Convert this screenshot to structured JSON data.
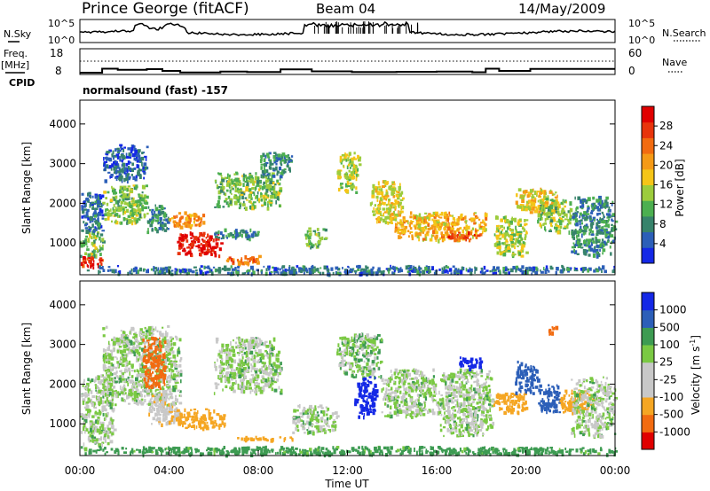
{
  "header": {
    "site": "Prince George (fitACF)",
    "beam": "Beam 04",
    "date": "14/May/2009"
  },
  "nsky_panel": {
    "left_label": "N.Sky",
    "left_ticks": [
      "10^5",
      "10^0"
    ],
    "right_ticks": [
      "10^5",
      "10^0"
    ],
    "right_label": "N.Search"
  },
  "freq_panel": {
    "left_label_line1": "Freq.",
    "left_label_line2": "[MHz]",
    "left_ticks": [
      "18",
      "8"
    ],
    "right_ticks": [
      "60",
      "0"
    ],
    "right_label": "Nave",
    "cpid_label": "CPID",
    "cpid_text": "normalsound (fast) -157",
    "freq_steps_mhz": [
      [
        0.0,
        8.8
      ],
      [
        1.0,
        10.6
      ],
      [
        1.7,
        10.1
      ],
      [
        3.0,
        10.4
      ],
      [
        3.7,
        9.6
      ],
      [
        4.5,
        8.9
      ],
      [
        6.3,
        9.3
      ],
      [
        7.5,
        9.1
      ],
      [
        9.0,
        10.3
      ],
      [
        10.4,
        9.4
      ],
      [
        12.2,
        9.1
      ],
      [
        14.2,
        9.2
      ],
      [
        16.0,
        9.3
      ],
      [
        17.6,
        9.0
      ],
      [
        18.2,
        10.6
      ],
      [
        18.8,
        9.6
      ],
      [
        20.2,
        10.5
      ],
      [
        23.2,
        10.5
      ]
    ]
  },
  "colors": {
    "power_scale": [
      "#1428e6",
      "#2c5fb8",
      "#37836b",
      "#4caf50",
      "#9ccc3c",
      "#f5c518",
      "#f59a16",
      "#f26b10",
      "#e8340c",
      "#e00000"
    ],
    "velocity_scale": [
      "#e00000",
      "#f26b10",
      "#f5a623",
      "#c8c8c8",
      "#c8c8c8",
      "#7ac943",
      "#3d9b52",
      "#2c5fb8",
      "#1428e6"
    ]
  },
  "chart_data": [
    {
      "type": "heatmap",
      "name": "power",
      "ylabel": "Slant Range [km]",
      "y_ticks": [
        "1000",
        "2000",
        "3000",
        "4000"
      ],
      "ylim": [
        200,
        4600
      ],
      "xlim": [
        0,
        24
      ],
      "colorbar_label": "Power [dB]",
      "colorbar_ticks": [
        "4",
        "8",
        "12",
        "16",
        "20",
        "24",
        "28"
      ],
      "regions": [
        {
          "t": [
            0.0,
            1.0
          ],
          "r": [
            400,
            700
          ],
          "v": 26
        },
        {
          "t": [
            0.0,
            1.0
          ],
          "r": [
            700,
            1300
          ],
          "v": 12
        },
        {
          "t": [
            0.0,
            1.0
          ],
          "r": [
            1300,
            2300
          ],
          "v": 6
        },
        {
          "t": [
            1.0,
            3.0
          ],
          "r": [
            1500,
            2500
          ],
          "v": 12
        },
        {
          "t": [
            1.0,
            3.0
          ],
          "r": [
            2600,
            3500
          ],
          "v": 5
        },
        {
          "t": [
            3.0,
            4.0
          ],
          "r": [
            1300,
            2000
          ],
          "v": 8
        },
        {
          "t": [
            4.0,
            5.5
          ],
          "r": [
            1400,
            1800
          ],
          "v": 20
        },
        {
          "t": [
            4.3,
            6.3
          ],
          "r": [
            700,
            1300
          ],
          "v": 28
        },
        {
          "t": [
            6.0,
            8.0
          ],
          "r": [
            1100,
            1400
          ],
          "v": 8
        },
        {
          "t": [
            6.5,
            8.0
          ],
          "r": [
            500,
            750
          ],
          "v": 22
        },
        {
          "t": [
            6.0,
            9.0
          ],
          "r": [
            1900,
            2800
          ],
          "v": 12
        },
        {
          "t": [
            8.0,
            9.5
          ],
          "r": [
            2700,
            3300
          ],
          "v": 8
        },
        {
          "t": [
            10.0,
            11.0
          ],
          "r": [
            900,
            1400
          ],
          "v": 12
        },
        {
          "t": [
            11.5,
            12.5
          ],
          "r": [
            2300,
            3300
          ],
          "v": 14
        },
        {
          "t": [
            13.0,
            14.5
          ],
          "r": [
            1500,
            2600
          ],
          "v": 16
        },
        {
          "t": [
            14.0,
            18.2
          ],
          "r": [
            1100,
            1800
          ],
          "v": 18
        },
        {
          "t": [
            16.5,
            18.0
          ],
          "r": [
            1100,
            1300
          ],
          "v": 24
        },
        {
          "t": [
            18.5,
            20.0
          ],
          "r": [
            700,
            1700
          ],
          "v": 14
        },
        {
          "t": [
            19.5,
            21.5
          ],
          "r": [
            1800,
            2400
          ],
          "v": 16
        },
        {
          "t": [
            20.5,
            22.0
          ],
          "r": [
            1300,
            2200
          ],
          "v": 12
        },
        {
          "t": [
            22.0,
            24.0
          ],
          "r": [
            700,
            2200
          ],
          "v": 8
        },
        {
          "t": [
            0.0,
            24.0
          ],
          "r": [
            250,
            450
          ],
          "v": 6
        }
      ]
    },
    {
      "type": "heatmap",
      "name": "velocity",
      "ylabel": "Slant Range [km]",
      "y_ticks": [
        "1000",
        "2000",
        "3000",
        "4000"
      ],
      "ylim": [
        200,
        4600
      ],
      "xlim": [
        0,
        24
      ],
      "colorbar_label_prefix": "Velocity  [m s",
      "colorbar_label_exp": "-1",
      "colorbar_label_suffix": "]",
      "colorbar_ticks": [
        "-1000",
        "-500",
        "-100",
        "-25",
        "25",
        "100",
        "500",
        "1000"
      ],
      "x_ticks": [
        "00:00",
        "04:00",
        "08:00",
        "12:00",
        "16:00",
        "20:00",
        "00:00"
      ],
      "xlabel": "Time UT",
      "regions": [
        {
          "t": [
            0.0,
            1.5
          ],
          "r": [
            500,
            2300
          ],
          "v": 0
        },
        {
          "t": [
            1.0,
            4.5
          ],
          "r": [
            1500,
            3500
          ],
          "v": 0
        },
        {
          "t": [
            2.8,
            3.8
          ],
          "r": [
            1800,
            3200
          ],
          "v": -700
        },
        {
          "t": [
            3.0,
            4.5
          ],
          "r": [
            1000,
            1800
          ],
          "v": -80
        },
        {
          "t": [
            4.3,
            6.5
          ],
          "r": [
            900,
            1400
          ],
          "v": -400
        },
        {
          "t": [
            6.0,
            9.0
          ],
          "r": [
            1800,
            3200
          ],
          "v": 0
        },
        {
          "t": [
            7.0,
            9.5
          ],
          "r": [
            600,
            700
          ],
          "v": -300
        },
        {
          "t": [
            9.5,
            11.5
          ],
          "r": [
            800,
            1500
          ],
          "v": 0
        },
        {
          "t": [
            11.5,
            13.5
          ],
          "r": [
            2200,
            3300
          ],
          "v": 10
        },
        {
          "t": [
            12.3,
            13.3
          ],
          "r": [
            1200,
            2200
          ],
          "v": 600
        },
        {
          "t": [
            13.5,
            16.0
          ],
          "r": [
            1200,
            2400
          ],
          "v": 0
        },
        {
          "t": [
            16.0,
            18.5
          ],
          "r": [
            700,
            2400
          ],
          "v": 0
        },
        {
          "t": [
            17.0,
            18.0
          ],
          "r": [
            2400,
            2700
          ],
          "v": 700
        },
        {
          "t": [
            18.5,
            20.0
          ],
          "r": [
            1300,
            1800
          ],
          "v": -150
        },
        {
          "t": [
            19.5,
            20.5
          ],
          "r": [
            1800,
            2600
          ],
          "v": 300
        },
        {
          "t": [
            20.5,
            21.5
          ],
          "r": [
            1300,
            2000
          ],
          "v": 150
        },
        {
          "t": [
            21.5,
            23.0
          ],
          "r": [
            1300,
            1900
          ],
          "v": -200
        },
        {
          "t": [
            22.0,
            24.0
          ],
          "r": [
            700,
            2200
          ],
          "v": 0
        },
        {
          "t": [
            21.0,
            21.4
          ],
          "r": [
            3300,
            3500
          ],
          "v": -800
        },
        {
          "t": [
            0.0,
            24.0
          ],
          "r": [
            250,
            450
          ],
          "v": 50
        }
      ]
    }
  ]
}
